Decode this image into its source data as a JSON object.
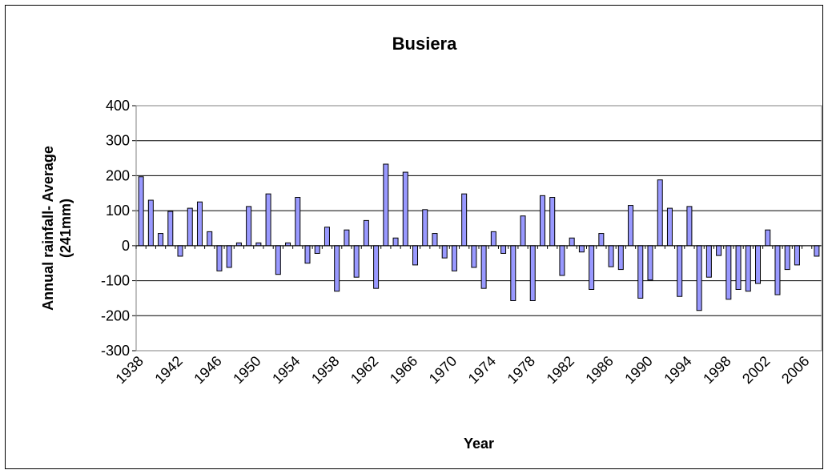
{
  "chart_data": {
    "type": "bar",
    "title": "Busiera",
    "xlabel": "Year",
    "ylabel": [
      "Annual rainfall- Average",
      "(241mm)"
    ],
    "categories": [
      "1938",
      null,
      null,
      null,
      "1942",
      null,
      null,
      null,
      "1946",
      null,
      null,
      null,
      "1950",
      null,
      null,
      null,
      "1954",
      null,
      null,
      null,
      "1958",
      null,
      null,
      null,
      "1962",
      null,
      null,
      null,
      "1966",
      null,
      null,
      null,
      "1970",
      null,
      null,
      null,
      "1974",
      null,
      null,
      null,
      "1978",
      null,
      null,
      null,
      "1982",
      null,
      null,
      null,
      "1986",
      null,
      null,
      null,
      "1990",
      null,
      null,
      null,
      "1994",
      null,
      null,
      null,
      "1998",
      null,
      null,
      null,
      "2002",
      null,
      null,
      null,
      "2006",
      null
    ],
    "values": [
      197,
      130,
      35,
      98,
      -30,
      107,
      125,
      40,
      -72,
      -62,
      8,
      112,
      8,
      148,
      -82,
      8,
      138,
      -50,
      -22,
      53,
      -130,
      45,
      -90,
      72,
      -122,
      233,
      22,
      210,
      -55,
      103,
      35,
      -35,
      -72,
      148,
      -62,
      -122,
      40,
      -22,
      -157,
      85,
      -157,
      143,
      138,
      -85,
      22,
      -18,
      -125,
      35,
      -60,
      -68,
      115,
      -150,
      -98,
      188,
      107,
      -145,
      112,
      -185,
      -90,
      -28,
      -153,
      -125,
      -130,
      -108,
      45,
      -140,
      -68,
      -55,
      null,
      -30
    ],
    "color": "#9999ff",
    "ylim": [
      -300,
      400
    ],
    "yticks": [
      -300,
      -200,
      -100,
      0,
      100,
      200,
      300,
      400
    ],
    "grid": true
  }
}
